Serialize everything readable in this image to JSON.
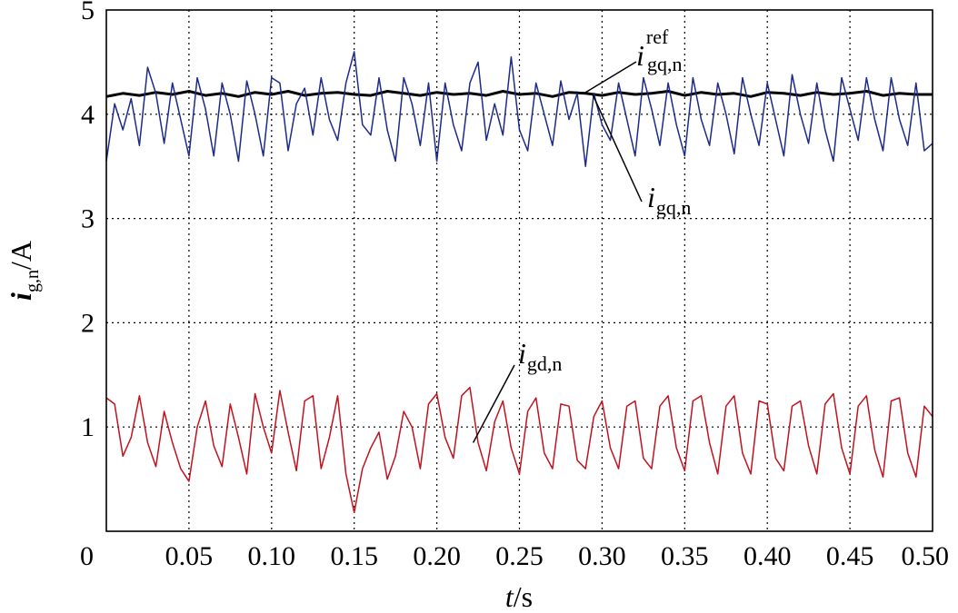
{
  "chart_data": {
    "type": "line",
    "title": "",
    "xlabel": {
      "italic": "t",
      "rest": "/s"
    },
    "ylabel": {
      "base": "i",
      "sub": "g,n",
      "rest": "/A"
    },
    "xlim": [
      0,
      0.5
    ],
    "ylim": [
      0,
      5
    ],
    "grid": true,
    "x_ticks": [
      {
        "v": 0,
        "label": "0"
      },
      {
        "v": 0.05,
        "label": "0.05"
      },
      {
        "v": 0.1,
        "label": "0.10"
      },
      {
        "v": 0.15,
        "label": "0.15"
      },
      {
        "v": 0.2,
        "label": "0.20"
      },
      {
        "v": 0.25,
        "label": "0.25"
      },
      {
        "v": 0.3,
        "label": "0.30"
      },
      {
        "v": 0.35,
        "label": "0.35"
      },
      {
        "v": 0.4,
        "label": "0.40"
      },
      {
        "v": 0.45,
        "label": "0.45"
      },
      {
        "v": 0.5,
        "label": "0.50"
      }
    ],
    "y_ticks": [
      {
        "v": 1,
        "label": "1"
      },
      {
        "v": 2,
        "label": "2"
      },
      {
        "v": 3,
        "label": "3"
      },
      {
        "v": 4,
        "label": "4"
      },
      {
        "v": 5,
        "label": "5"
      }
    ],
    "series": [
      {
        "key": "igq-ref",
        "color": "#000000",
        "x": [
          0,
          0.01,
          0.02,
          0.03,
          0.04,
          0.05,
          0.06,
          0.07,
          0.08,
          0.09,
          0.1,
          0.11,
          0.12,
          0.13,
          0.14,
          0.15,
          0.16,
          0.17,
          0.18,
          0.19,
          0.2,
          0.21,
          0.22,
          0.23,
          0.24,
          0.25,
          0.26,
          0.27,
          0.28,
          0.29,
          0.3,
          0.31,
          0.32,
          0.33,
          0.34,
          0.35,
          0.36,
          0.37,
          0.38,
          0.39,
          0.4,
          0.41,
          0.42,
          0.43,
          0.44,
          0.45,
          0.46,
          0.47,
          0.48,
          0.49,
          0.5
        ],
        "values": [
          4.17,
          4.2,
          4.18,
          4.21,
          4.19,
          4.22,
          4.18,
          4.2,
          4.17,
          4.21,
          4.19,
          4.22,
          4.18,
          4.2,
          4.21,
          4.19,
          4.18,
          4.22,
          4.2,
          4.18,
          4.21,
          4.19,
          4.2,
          4.18,
          4.22,
          4.19,
          4.2,
          4.17,
          4.21,
          4.2,
          4.18,
          4.21,
          4.19,
          4.2,
          4.22,
          4.18,
          4.21,
          4.19,
          4.2,
          4.17,
          4.21,
          4.2,
          4.18,
          4.21,
          4.19,
          4.2,
          4.22,
          4.18,
          4.2,
          4.19,
          4.19
        ]
      },
      {
        "key": "igq",
        "color": "#1c2a8a",
        "x": [
          0,
          0.005,
          0.01,
          0.015,
          0.02,
          0.025,
          0.03,
          0.035,
          0.04,
          0.045,
          0.05,
          0.055,
          0.06,
          0.065,
          0.07,
          0.075,
          0.08,
          0.085,
          0.09,
          0.095,
          0.1,
          0.105,
          0.11,
          0.115,
          0.12,
          0.125,
          0.13,
          0.135,
          0.14,
          0.145,
          0.15,
          0.155,
          0.16,
          0.165,
          0.17,
          0.175,
          0.18,
          0.185,
          0.19,
          0.195,
          0.2,
          0.205,
          0.21,
          0.215,
          0.22,
          0.225,
          0.23,
          0.235,
          0.24,
          0.245,
          0.25,
          0.255,
          0.26,
          0.265,
          0.27,
          0.275,
          0.28,
          0.285,
          0.29,
          0.295,
          0.3,
          0.305,
          0.31,
          0.315,
          0.32,
          0.325,
          0.33,
          0.335,
          0.34,
          0.345,
          0.35,
          0.355,
          0.36,
          0.365,
          0.37,
          0.375,
          0.38,
          0.385,
          0.39,
          0.395,
          0.4,
          0.405,
          0.41,
          0.415,
          0.42,
          0.425,
          0.43,
          0.435,
          0.44,
          0.445,
          0.45,
          0.455,
          0.46,
          0.465,
          0.47,
          0.475,
          0.48,
          0.485,
          0.49,
          0.495,
          0.5
        ],
        "values": [
          3.55,
          4.1,
          3.85,
          4.15,
          3.7,
          4.45,
          4.2,
          3.72,
          4.3,
          3.95,
          3.6,
          4.35,
          4.05,
          3.6,
          4.3,
          4.0,
          3.55,
          4.32,
          4.0,
          3.6,
          4.35,
          4.3,
          3.65,
          4.1,
          4.25,
          3.8,
          4.35,
          3.95,
          3.75,
          4.3,
          4.6,
          3.9,
          3.8,
          4.35,
          3.85,
          3.55,
          4.35,
          4.1,
          3.7,
          4.3,
          3.55,
          4.3,
          3.9,
          3.65,
          4.3,
          4.5,
          3.75,
          4.1,
          3.8,
          4.55,
          3.85,
          3.65,
          4.3,
          4.0,
          3.7,
          4.32,
          3.95,
          4.2,
          3.5,
          4.2,
          3.9,
          3.75,
          4.3,
          3.95,
          3.6,
          4.35,
          4.05,
          3.7,
          4.3,
          3.9,
          3.6,
          4.35,
          3.95,
          3.7,
          4.3,
          4.0,
          3.62,
          4.35,
          4.0,
          3.7,
          4.3,
          3.95,
          3.6,
          4.38,
          4.0,
          3.72,
          4.3,
          3.85,
          3.55,
          4.35,
          4.05,
          3.75,
          4.35,
          3.95,
          3.65,
          4.35,
          3.95,
          3.7,
          4.3,
          3.65,
          3.72
        ]
      },
      {
        "key": "igd",
        "color": "#c1121f",
        "x": [
          0,
          0.005,
          0.01,
          0.015,
          0.02,
          0.025,
          0.03,
          0.035,
          0.04,
          0.045,
          0.05,
          0.055,
          0.06,
          0.065,
          0.07,
          0.075,
          0.08,
          0.085,
          0.09,
          0.095,
          0.1,
          0.105,
          0.11,
          0.115,
          0.12,
          0.125,
          0.13,
          0.135,
          0.14,
          0.145,
          0.15,
          0.155,
          0.16,
          0.165,
          0.17,
          0.175,
          0.18,
          0.185,
          0.19,
          0.195,
          0.2,
          0.205,
          0.21,
          0.215,
          0.22,
          0.225,
          0.23,
          0.235,
          0.24,
          0.245,
          0.25,
          0.255,
          0.26,
          0.265,
          0.27,
          0.275,
          0.28,
          0.285,
          0.29,
          0.295,
          0.3,
          0.305,
          0.31,
          0.315,
          0.32,
          0.325,
          0.33,
          0.335,
          0.34,
          0.345,
          0.35,
          0.355,
          0.36,
          0.365,
          0.37,
          0.375,
          0.38,
          0.385,
          0.39,
          0.395,
          0.4,
          0.405,
          0.41,
          0.415,
          0.42,
          0.425,
          0.43,
          0.435,
          0.44,
          0.445,
          0.45,
          0.455,
          0.46,
          0.465,
          0.47,
          0.475,
          0.48,
          0.485,
          0.49,
          0.495,
          0.5
        ],
        "values": [
          1.28,
          1.22,
          0.72,
          0.9,
          1.3,
          0.85,
          0.62,
          1.15,
          0.85,
          0.6,
          0.48,
          1.0,
          1.25,
          0.82,
          0.62,
          1.22,
          0.9,
          0.55,
          1.32,
          1.0,
          0.75,
          1.35,
          0.95,
          0.58,
          1.25,
          1.3,
          0.6,
          0.9,
          1.3,
          0.55,
          0.18,
          0.6,
          0.8,
          0.95,
          0.5,
          0.72,
          1.15,
          1.0,
          0.6,
          1.22,
          1.32,
          0.9,
          0.7,
          1.3,
          1.38,
          0.85,
          0.58,
          1.05,
          1.25,
          0.8,
          0.55,
          1.15,
          1.28,
          0.75,
          0.6,
          1.22,
          1.2,
          0.68,
          0.6,
          1.1,
          1.25,
          0.8,
          0.6,
          1.2,
          1.25,
          0.7,
          0.6,
          1.2,
          1.3,
          0.8,
          0.58,
          1.25,
          1.3,
          0.85,
          0.55,
          1.2,
          1.3,
          0.75,
          0.55,
          1.25,
          1.22,
          0.7,
          0.58,
          1.2,
          1.25,
          0.82,
          0.55,
          1.22,
          1.32,
          0.8,
          0.55,
          1.2,
          1.3,
          0.78,
          0.52,
          1.25,
          1.28,
          0.75,
          0.52,
          1.2,
          1.1
        ]
      }
    ],
    "annotations": [
      {
        "series": "igq-ref",
        "base": "i",
        "sub": "gq,n",
        "sup": "ref"
      },
      {
        "series": "igq",
        "base": "i",
        "sub": "gq,n"
      },
      {
        "series": "igd",
        "base": "i",
        "sub": "gd,n"
      }
    ]
  }
}
